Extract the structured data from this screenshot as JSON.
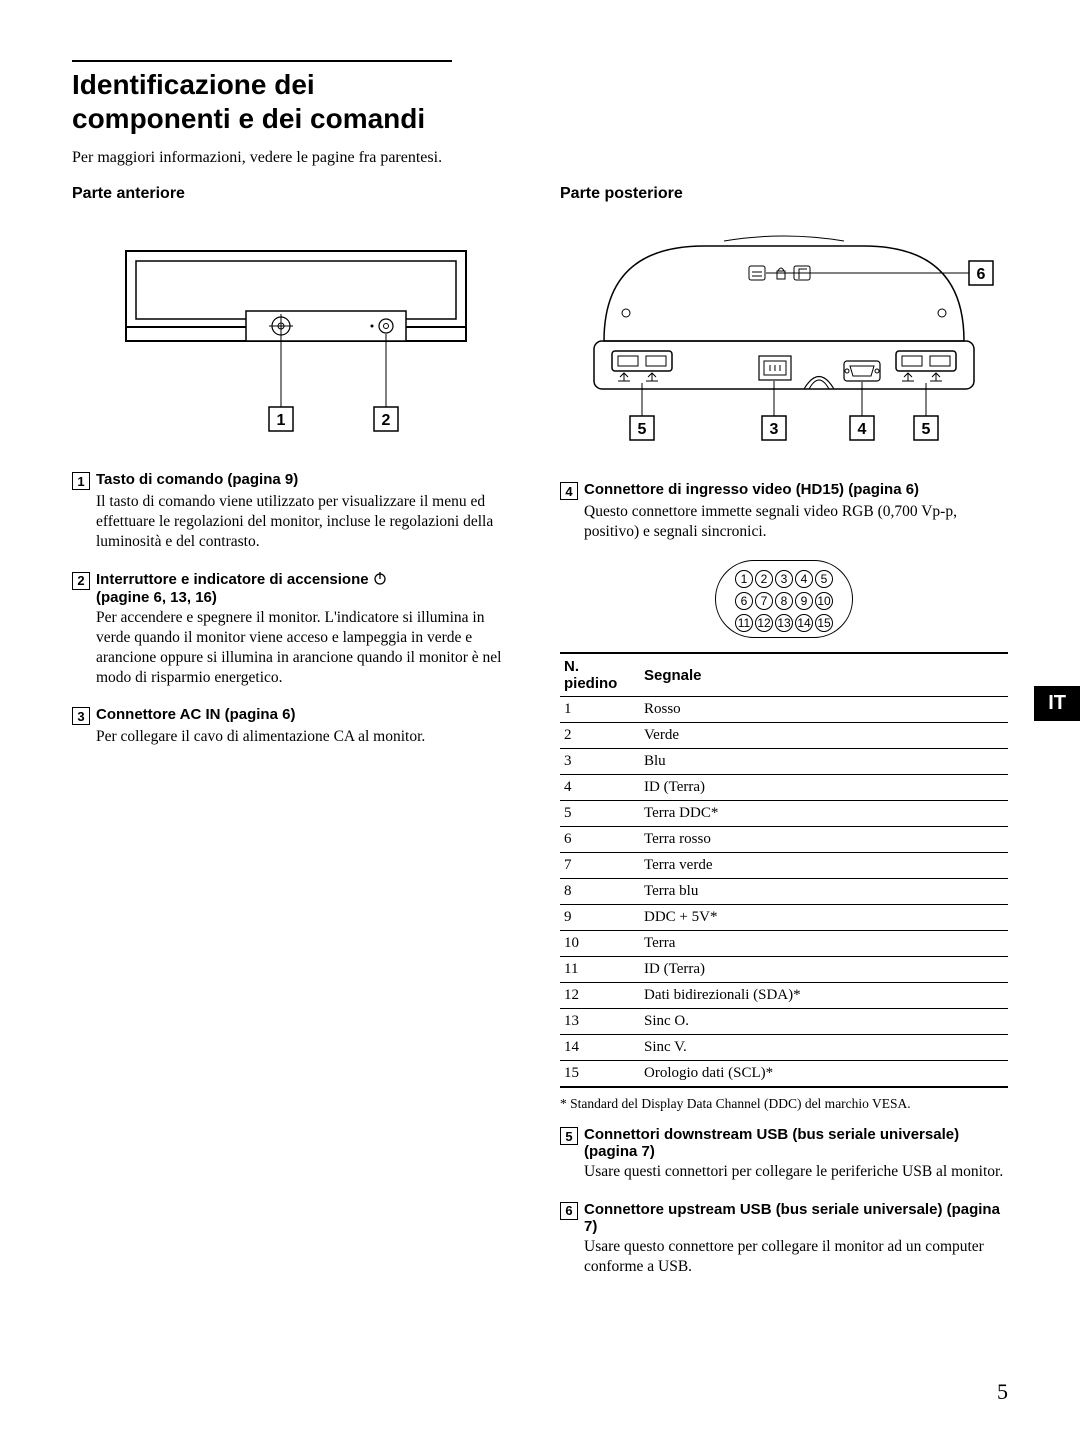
{
  "title": "Identificazione dei componenti e dei comandi",
  "intro": "Per maggiori informazioni, vedere le pagine fra parentesi.",
  "left": {
    "subhead": "Parte anteriore",
    "diagram": {
      "callouts": [
        "1",
        "2"
      ]
    },
    "items": [
      {
        "num": "1",
        "title": "Tasto di comando (pagina 9)",
        "body": "Il tasto di comando viene utilizzato per visualizzare il menu ed effettuare le regolazioni del monitor, incluse le regolazioni della luminosità e del contrasto."
      },
      {
        "num": "2",
        "title": "Interruttore e indicatore di accensione",
        "title_suffix": "(pagine 6, 13, 16)",
        "has_power_icon": true,
        "body": "Per accendere e spegnere il monitor. L'indicatore si illumina in verde quando il monitor viene acceso e lampeggia in verde e arancione oppure si illumina in arancione quando il monitor è nel modo di risparmio energetico."
      },
      {
        "num": "3",
        "title": "Connettore AC IN (pagina 6)",
        "body": "Per collegare il cavo di alimentazione CA al monitor."
      }
    ]
  },
  "right": {
    "subhead": "Parte posteriore",
    "diagram": {
      "callouts_top": [
        "6"
      ],
      "callouts_bottom": [
        "5",
        "3",
        "4",
        "5"
      ]
    },
    "item4": {
      "num": "4",
      "title": "Connettore di ingresso video (HD15) (pagina 6)",
      "body": "Questo connettore immette segnali video RGB (0,700 Vp-p, positivo) e segnali sincronici."
    },
    "pins": {
      "row1": [
        "1",
        "2",
        "3",
        "4",
        "5"
      ],
      "row2": [
        "6",
        "7",
        "8",
        "9",
        "10"
      ],
      "row3": [
        "11",
        "12",
        "13",
        "14",
        "15"
      ]
    },
    "table": {
      "headers": [
        "N. piedino",
        "Segnale"
      ],
      "rows": [
        [
          "1",
          "Rosso"
        ],
        [
          "2",
          "Verde"
        ],
        [
          "3",
          "Blu"
        ],
        [
          "4",
          "ID (Terra)"
        ],
        [
          "5",
          "Terra DDC*"
        ],
        [
          "6",
          "Terra rosso"
        ],
        [
          "7",
          "Terra verde"
        ],
        [
          "8",
          "Terra blu"
        ],
        [
          "9",
          "DDC + 5V*"
        ],
        [
          "10",
          "Terra"
        ],
        [
          "11",
          "ID (Terra)"
        ],
        [
          "12",
          "Dati bidirezionali (SDA)*"
        ],
        [
          "13",
          "Sinc O."
        ],
        [
          "14",
          "Sinc V."
        ],
        [
          "15",
          "Orologio dati (SCL)*"
        ]
      ]
    },
    "footnote": "* Standard del Display Data Channel (DDC) del marchio VESA.",
    "item5": {
      "num": "5",
      "title": "Connettori downstream USB (bus seriale universale) (pagina 7)",
      "body": "Usare questi connettori per collegare le periferiche USB al monitor."
    },
    "item6": {
      "num": "6",
      "title": "Connettore upstream USB (bus seriale universale) (pagina 7)",
      "body": "Usare questo connettore per collegare il monitor ad un computer conforme a USB."
    }
  },
  "lang_tab": "IT",
  "page_number": "5"
}
